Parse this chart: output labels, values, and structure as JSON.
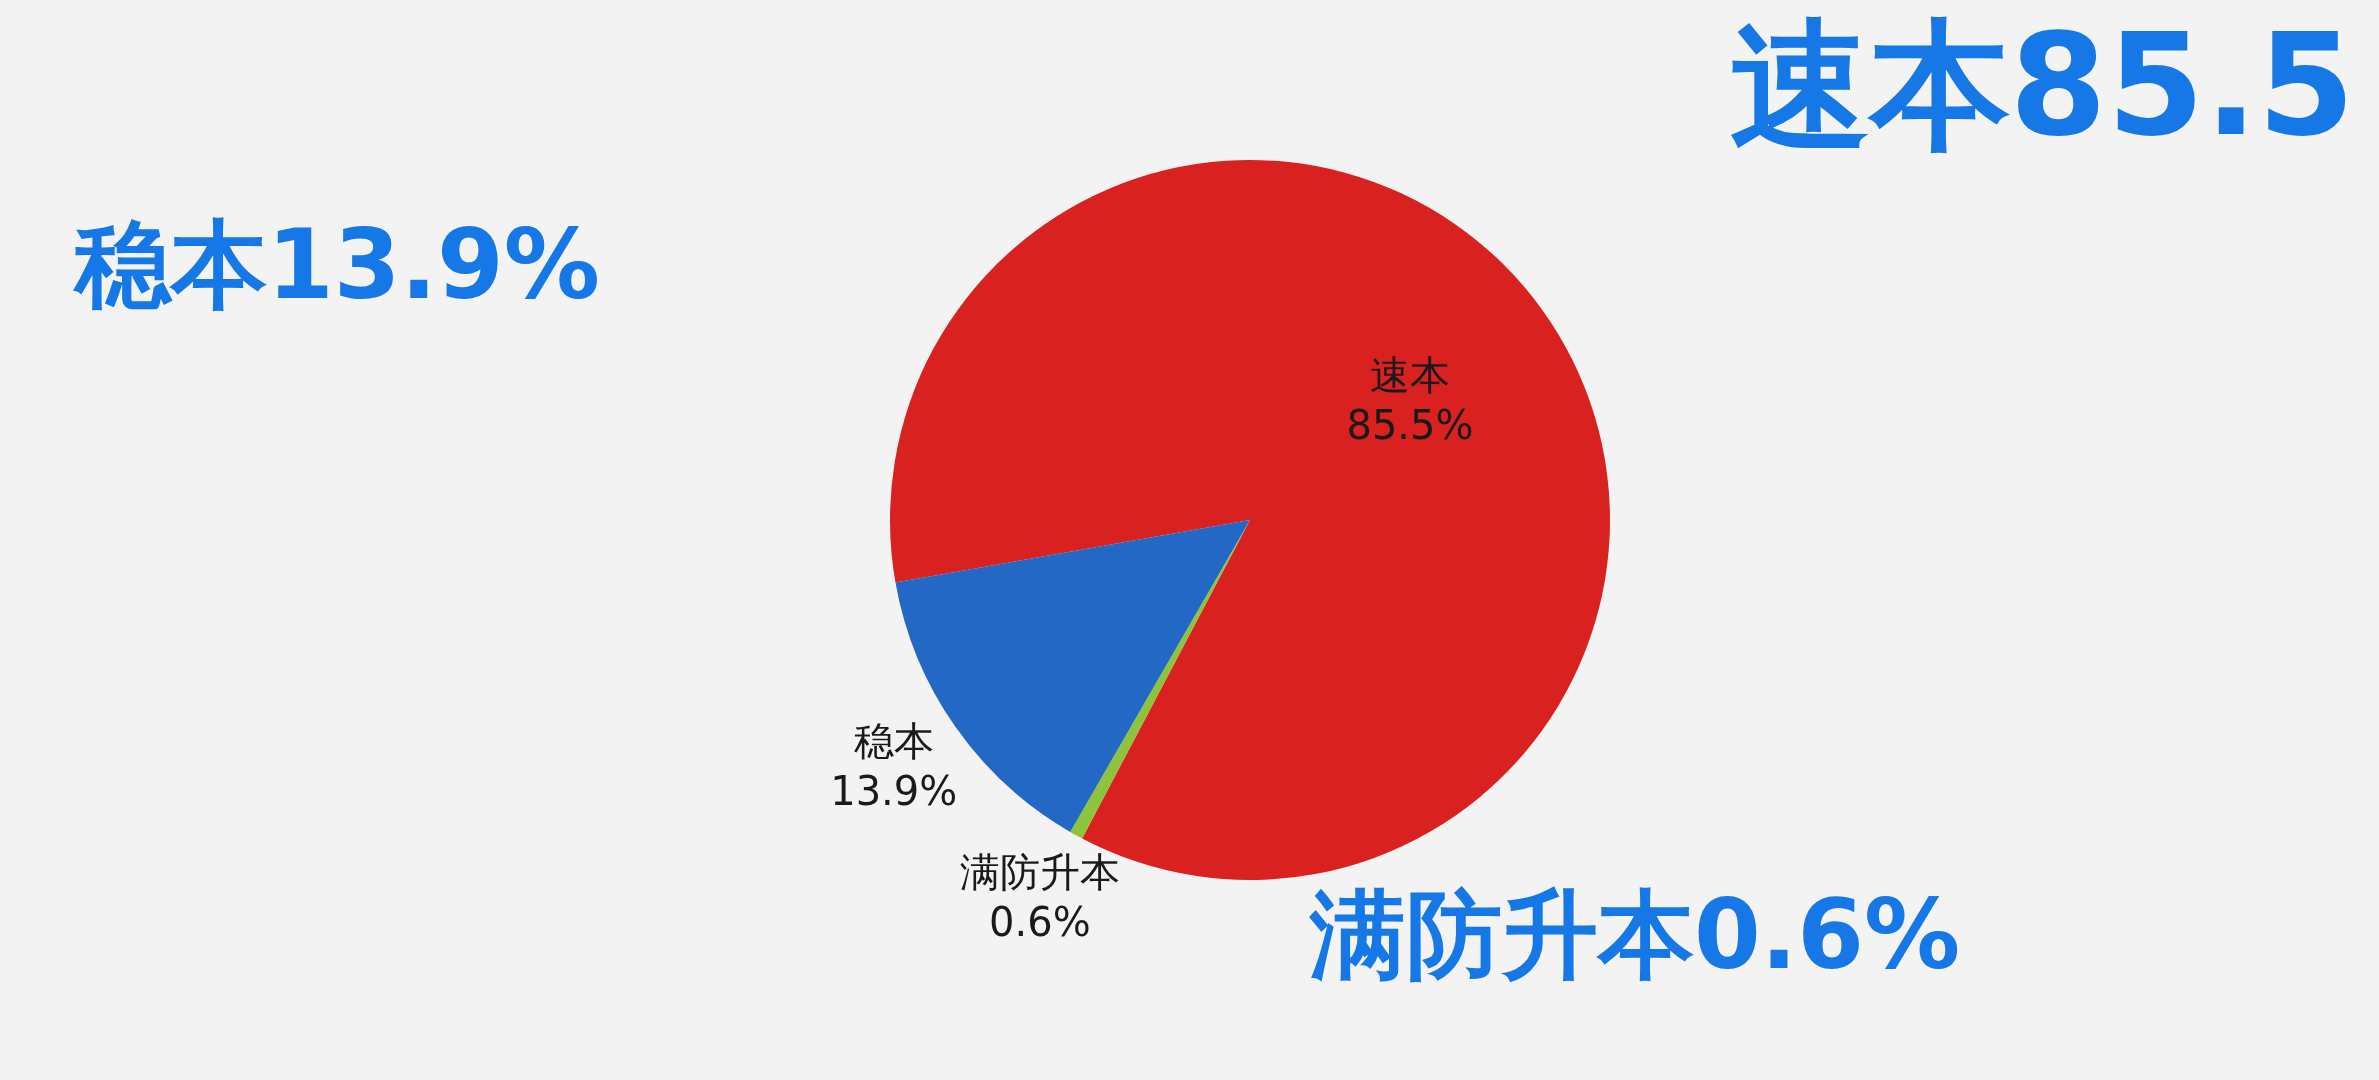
{
  "chart_data": {
    "type": "pie",
    "categories": [
      "速本",
      "满防升本",
      "稳本"
    ],
    "values": [
      85.5,
      0.6,
      13.9
    ],
    "colors": [
      "#d9221f",
      "#8cc43c",
      "#2268c4"
    ],
    "value_labels": [
      "85.5%",
      "0.6%",
      "13.9%"
    ],
    "annotations": [
      "速本85.5",
      "稳本13.9%",
      "满防升本0.6%"
    ]
  }
}
